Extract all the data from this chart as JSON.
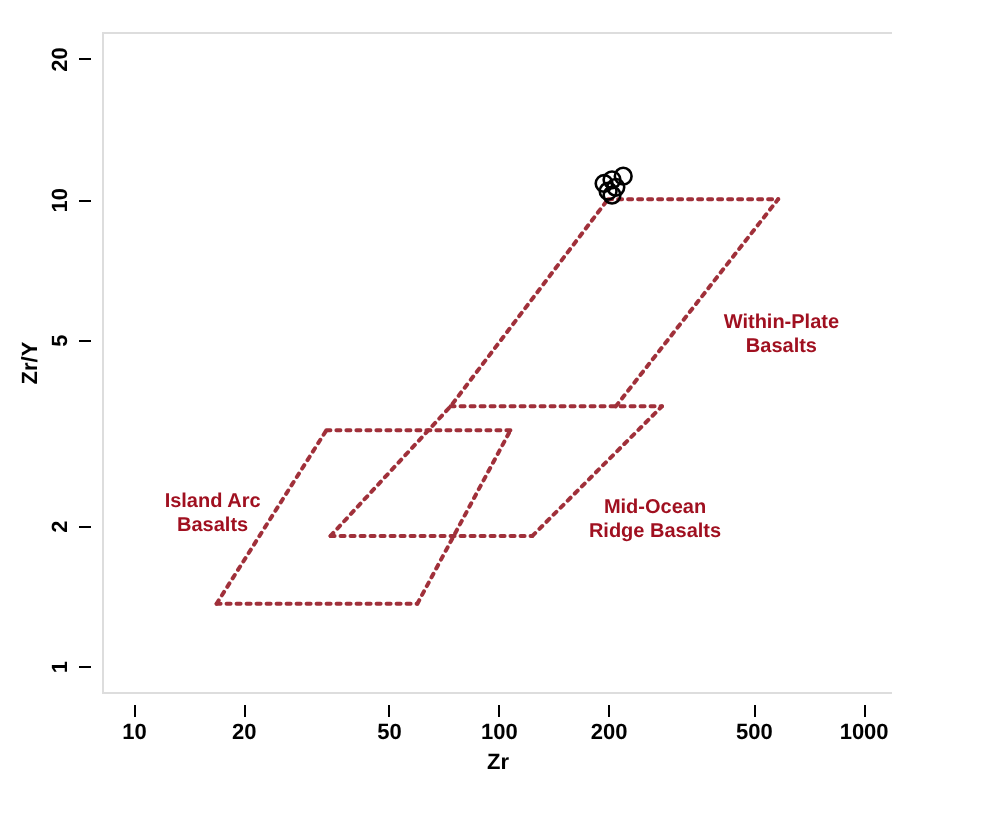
{
  "chart_data": {
    "type": "scatter",
    "xlabel": "Zr",
    "ylabel": "Zr/Y",
    "log": "xy",
    "grid": false,
    "xlim": [
      8.2,
      1200
    ],
    "ylim": [
      0.88,
      22.8
    ],
    "xticks": [
      10,
      20,
      50,
      100,
      200,
      500,
      {
        "value": 1000,
        "label": "1000"
      }
    ],
    "yticks": [
      1,
      2,
      5,
      10,
      20
    ],
    "series": [
      {
        "type": "line",
        "line_style": "dotted",
        "marker": "none",
        "color": "#a0303a",
        "x": [
          16.9,
          60
        ],
        "values": [
          1.36,
          1.36
        ]
      },
      {
        "type": "line",
        "line_style": "dotted",
        "marker": "none",
        "color": "#a0303a",
        "x": [
          60,
          108
        ],
        "values": [
          1.36,
          3.2
        ]
      },
      {
        "type": "line",
        "line_style": "dotted",
        "marker": "none",
        "color": "#a0303a",
        "x": [
          33.8,
          108
        ],
        "values": [
          3.2,
          3.2
        ]
      },
      {
        "type": "line",
        "line_style": "dotted",
        "marker": "none",
        "color": "#a0303a",
        "x": [
          16.9,
          33.8
        ],
        "values": [
          1.36,
          3.2
        ]
      },
      {
        "type": "line",
        "line_style": "dotted",
        "marker": "none",
        "color": "#a0303a",
        "x": [
          34.7,
          124
        ],
        "values": [
          1.9,
          1.9
        ]
      },
      {
        "type": "line",
        "line_style": "dotted",
        "marker": "none",
        "color": "#a0303a",
        "x": [
          124,
          281
        ],
        "values": [
          1.9,
          3.6
        ]
      },
      {
        "type": "line",
        "line_style": "dotted",
        "marker": "none",
        "color": "#a0303a",
        "x": [
          74,
          281
        ],
        "values": [
          3.6,
          3.6
        ]
      },
      {
        "type": "line",
        "line_style": "dotted",
        "marker": "none",
        "color": "#a0303a",
        "x": [
          34.7,
          74,
          200
        ],
        "values": [
          1.9,
          3.6,
          10
        ]
      },
      {
        "type": "line",
        "line_style": "dotted",
        "marker": "none",
        "color": "#a0303a",
        "x": [
          200,
          585
        ],
        "values": [
          10,
          10
        ]
      },
      {
        "type": "line",
        "line_style": "dotted",
        "marker": "none",
        "color": "#a0303a",
        "x": [
          210,
          585
        ],
        "values": [
          3.6,
          10
        ]
      },
      {
        "marker": "circle",
        "color": "#000000",
        "x": [
          195,
          205,
          210,
          200,
          220,
          205
        ],
        "values": [
          10.8,
          11.0,
          10.6,
          10.4,
          11.2,
          10.2
        ]
      }
    ],
    "annotations": [
      "Island Arc\nBasalts",
      "Within-Plate\nBasalts",
      "Mid-Ocean\nRidge Basalts"
    ]
  }
}
